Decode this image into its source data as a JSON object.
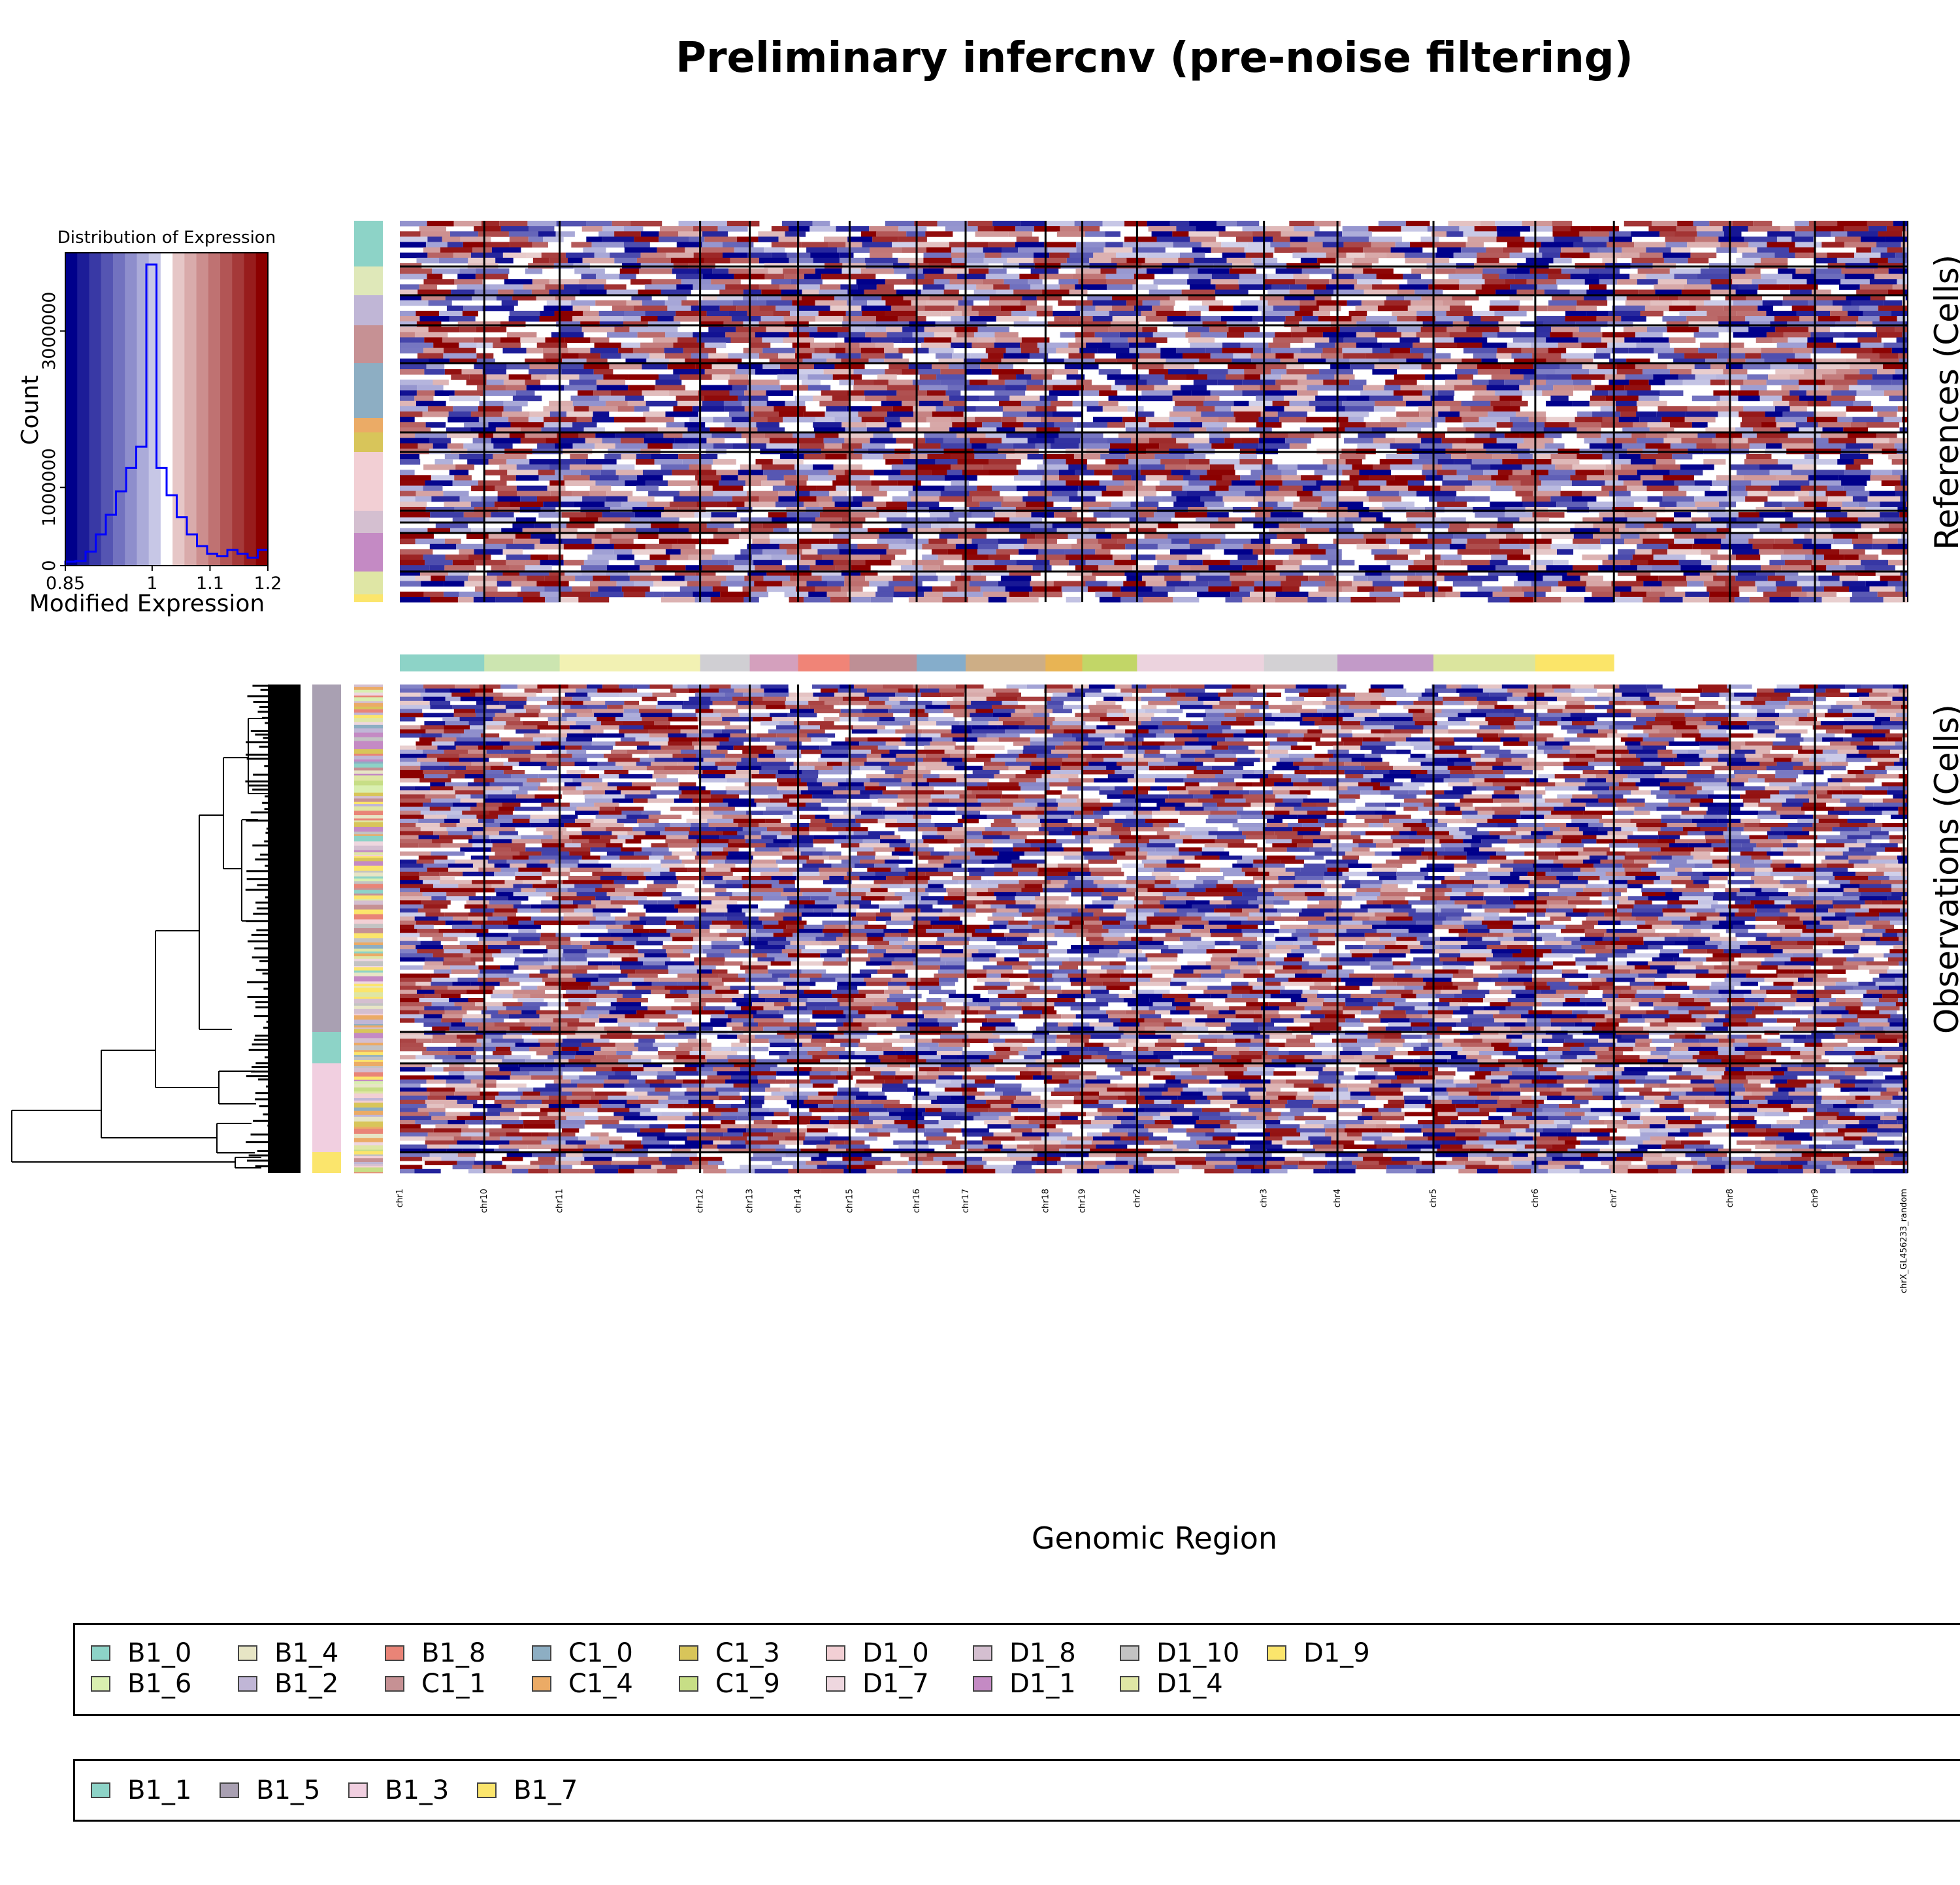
{
  "title": "Preliminary infercnv (pre-noise filtering)",
  "xlabel": "Genomic Region",
  "references_label": "References (Cells)",
  "observations_label": "Observations (Cells)",
  "colors": {
    "heat_low": "#00008b",
    "heat_mid": "#ffffff",
    "heat_high": "#8b0000",
    "histogram_line": "#0000ff"
  },
  "chart_data": [
    {
      "type": "bar",
      "name": "color-key-histogram",
      "title": "Distribution of Expression",
      "xlabel": "Modified Expression",
      "ylabel": "Count",
      "xlim": [
        0.85,
        1.2
      ],
      "ylim": [
        0,
        4000000
      ],
      "x_ticks": [
        "0.85",
        "1",
        "1.1",
        "1.2"
      ],
      "y_ticks": [
        "0",
        "1000000",
        "3000000"
      ],
      "bin_edges": [
        0.85,
        0.8675,
        0.885,
        0.9025,
        0.92,
        0.9375,
        0.955,
        0.9725,
        0.99,
        1.0075,
        1.025,
        1.0425,
        1.06,
        1.0775,
        1.095,
        1.1125,
        1.13,
        1.1475,
        1.165,
        1.1825,
        1.2
      ],
      "counts": [
        50000,
        60000,
        180000,
        400000,
        650000,
        950000,
        1250000,
        1520000,
        3850000,
        1250000,
        900000,
        620000,
        400000,
        250000,
        150000,
        120000,
        200000,
        150000,
        100000,
        200000
      ]
    },
    {
      "type": "heatmap",
      "name": "infercnv-heatmap",
      "colormap": [
        "#00008b",
        "#ffffff",
        "#8b0000"
      ],
      "chromosomes": [
        "chr1",
        "chr10",
        "chr11",
        "chr12",
        "chr13",
        "chr14",
        "chr15",
        "chr16",
        "chr17",
        "chr18",
        "chr19",
        "chr2",
        "chr3",
        "chr4",
        "chr5",
        "chr6",
        "chr7",
        "chr8",
        "chr9",
        "chrX_GL456233_random"
      ],
      "chromosome_widths": [
        131,
        117,
        218,
        77,
        75,
        80,
        104,
        76,
        124,
        57,
        85,
        197,
        114,
        149,
        158,
        122,
        180,
        132,
        138,
        6
      ],
      "chromosome_bar_colors": [
        "#8dd3c7",
        "#cce5b0",
        "#f2f1b3",
        "#d0cfd3",
        "#d4a0bd",
        "#f08477",
        "#be8f95",
        "#85adcb",
        "#cdae86",
        "#e8b454",
        "#c2d667",
        "#ecd3de",
        "#d3d1d4",
        "#c29ac8",
        "#dbe59e",
        "#fbe569"
      ],
      "reference_groups": [
        "B1_0",
        "B1_6",
        "B1_4",
        "B1_2",
        "B1_8",
        "C1_1",
        "C1_0",
        "C1_4",
        "C1_3",
        "C1_9",
        "D1_0",
        "D1_7",
        "D1_8",
        "D1_1",
        "D1_10",
        "D1_4",
        "D1_9"
      ],
      "observation_groups": [
        "B1_5",
        "B1_1",
        "B1_3",
        "B1_7"
      ]
    }
  ],
  "legend_references": [
    {
      "label": "B1_0",
      "color": "#8dd3c7"
    },
    {
      "label": "B1_6",
      "color": "#d9efb0"
    },
    {
      "label": "B1_4",
      "color": "#e7e5c5"
    },
    {
      "label": "B1_2",
      "color": "#c0b6d6"
    },
    {
      "label": "B1_8",
      "color": "#e98477"
    },
    {
      "label": "C1_1",
      "color": "#c69194"
    },
    {
      "label": "C1_0",
      "color": "#8daec3"
    },
    {
      "label": "C1_4",
      "color": "#ebab66"
    },
    {
      "label": "C1_3",
      "color": "#d8c55a"
    },
    {
      "label": "C1_9",
      "color": "#c7de86"
    },
    {
      "label": "D1_0",
      "color": "#f2cfd4"
    },
    {
      "label": "D1_7",
      "color": "#eed7df"
    },
    {
      "label": "D1_8",
      "color": "#d4bfd0"
    },
    {
      "label": "D1_1",
      "color": "#c48ac4"
    },
    {
      "label": "D1_10",
      "color": "#c3c3c3"
    },
    {
      "label": "D1_4",
      "color": "#dfe6a5"
    },
    {
      "label": "D1_9",
      "color": "#fbe56c"
    }
  ],
  "legend_observations": [
    {
      "label": "B1_1",
      "color": "#8dd3c7"
    },
    {
      "label": "B1_5",
      "color": "#a9a0b2"
    },
    {
      "label": "B1_3",
      "color": "#f1cfe0"
    },
    {
      "label": "B1_7",
      "color": "#fbe56c"
    }
  ]
}
